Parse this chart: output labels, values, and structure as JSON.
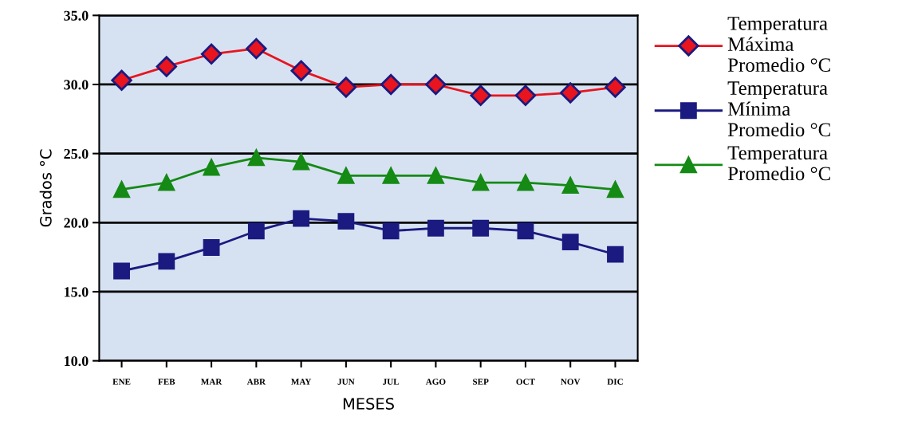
{
  "chart_data": {
    "type": "line",
    "xlabel": "MESES",
    "ylabel": "Grados °C",
    "categories": [
      "ENE",
      "FEB",
      "MAR",
      "ABR",
      "MAY",
      "JUN",
      "JUL",
      "AGO",
      "SEP",
      "OCT",
      "NOV",
      "DIC"
    ],
    "series": [
      {
        "name": "Temperatura Máxima Promedio °C",
        "color": "#e8141e",
        "marker": "diamond",
        "values": [
          30.3,
          31.3,
          32.2,
          32.6,
          31.0,
          29.8,
          30.0,
          30.0,
          29.2,
          29.2,
          29.4,
          29.8
        ]
      },
      {
        "name": "Temperatura Mínima Promedio °C",
        "color": "#1a1a80",
        "marker": "square",
        "values": [
          16.5,
          17.2,
          18.2,
          19.4,
          20.3,
          20.1,
          19.4,
          19.6,
          19.6,
          19.4,
          18.6,
          17.7
        ]
      },
      {
        "name": "Temperatura Promedio °C",
        "color": "#158a15",
        "marker": "triangle",
        "values": [
          22.4,
          22.9,
          24.0,
          24.7,
          24.4,
          23.4,
          23.4,
          23.4,
          22.9,
          22.9,
          22.7,
          22.4
        ]
      }
    ],
    "ylim": [
      10,
      35
    ],
    "yticks": [
      {
        "value": 10,
        "label": "10.0"
      },
      {
        "value": 15,
        "label": "15.0"
      },
      {
        "value": 20,
        "label": "20.0"
      },
      {
        "value": 25,
        "label": "25.0"
      },
      {
        "value": 30,
        "label": "30.0"
      },
      {
        "value": 35,
        "label": "35.0"
      }
    ],
    "grid": "y",
    "legend": "right",
    "line_style": "solid"
  }
}
